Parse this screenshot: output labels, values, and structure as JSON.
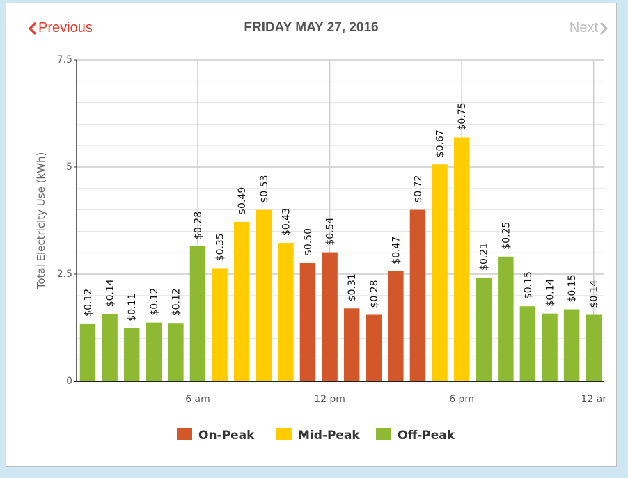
{
  "header": {
    "prev_label": "Previous",
    "next_label": "Next",
    "title": "FRIDAY MAY 27, 2016"
  },
  "colors": {
    "on_peak": "#d2572a",
    "mid_peak": "#ffcc00",
    "off_peak": "#8dba32",
    "accent": "#e23a2c"
  },
  "chart_data": {
    "type": "bar",
    "ylabel": "Total Electricity Use (kWh)",
    "ylim": [
      0,
      7.5
    ],
    "y_ticks": [
      "0",
      "2.5",
      "5",
      "7.5"
    ],
    "x_tick_labels": [
      {
        "label": "6 am",
        "hour": 6
      },
      {
        "label": "12 pm",
        "hour": 12
      },
      {
        "label": "6 pm",
        "hour": 18
      },
      {
        "label": "12 ar",
        "hour": 24
      }
    ],
    "legend": [
      {
        "name": "On-Peak",
        "key": "on"
      },
      {
        "name": "Mid-Peak",
        "key": "mid"
      },
      {
        "name": "Off-Peak",
        "key": "off"
      }
    ],
    "bars": [
      {
        "hour": 1,
        "kwh": 1.35,
        "cost": "$0.12",
        "period": "off"
      },
      {
        "hour": 2,
        "kwh": 1.57,
        "cost": "$0.14",
        "period": "off"
      },
      {
        "hour": 3,
        "kwh": 1.24,
        "cost": "$0.11",
        "period": "off"
      },
      {
        "hour": 4,
        "kwh": 1.37,
        "cost": "$0.12",
        "period": "off"
      },
      {
        "hour": 5,
        "kwh": 1.36,
        "cost": "$0.12",
        "period": "off"
      },
      {
        "hour": 6,
        "kwh": 3.15,
        "cost": "$0.28",
        "period": "off"
      },
      {
        "hour": 7,
        "kwh": 2.64,
        "cost": "$0.35",
        "period": "mid"
      },
      {
        "hour": 8,
        "kwh": 3.72,
        "cost": "$0.49",
        "period": "mid"
      },
      {
        "hour": 9,
        "kwh": 4.0,
        "cost": "$0.53",
        "period": "mid"
      },
      {
        "hour": 10,
        "kwh": 3.23,
        "cost": "$0.43",
        "period": "mid"
      },
      {
        "hour": 11,
        "kwh": 2.76,
        "cost": "$0.50",
        "period": "on"
      },
      {
        "hour": 12,
        "kwh": 3.01,
        "cost": "$0.54",
        "period": "on"
      },
      {
        "hour": 13,
        "kwh": 1.7,
        "cost": "$0.31",
        "period": "on"
      },
      {
        "hour": 14,
        "kwh": 1.55,
        "cost": "$0.28",
        "period": "on"
      },
      {
        "hour": 15,
        "kwh": 2.57,
        "cost": "$0.47",
        "period": "on"
      },
      {
        "hour": 16,
        "kwh": 4.0,
        "cost": "$0.72",
        "period": "on"
      },
      {
        "hour": 17,
        "kwh": 5.06,
        "cost": "$0.67",
        "period": "mid"
      },
      {
        "hour": 18,
        "kwh": 5.69,
        "cost": "$0.75",
        "period": "mid"
      },
      {
        "hour": 19,
        "kwh": 2.42,
        "cost": "$0.21",
        "period": "off"
      },
      {
        "hour": 20,
        "kwh": 2.91,
        "cost": "$0.25",
        "period": "off"
      },
      {
        "hour": 21,
        "kwh": 1.75,
        "cost": "$0.15",
        "period": "off"
      },
      {
        "hour": 22,
        "kwh": 1.58,
        "cost": "$0.14",
        "period": "off"
      },
      {
        "hour": 23,
        "kwh": 1.68,
        "cost": "$0.15",
        "period": "off"
      },
      {
        "hour": 24,
        "kwh": 1.55,
        "cost": "$0.14",
        "period": "off"
      }
    ]
  }
}
